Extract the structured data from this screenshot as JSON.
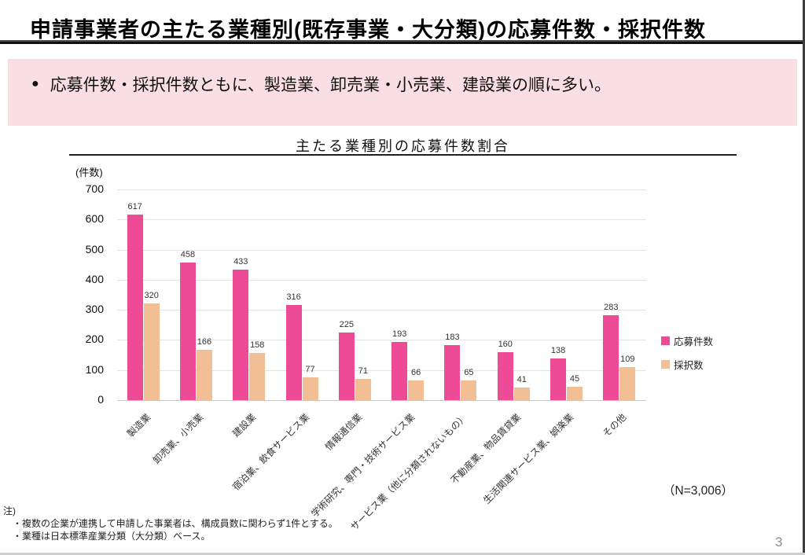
{
  "page": {
    "title": "申請事業者の主たる業種別(既存事業・大分類)の応募件数・採択件数",
    "page_number": "3"
  },
  "summary": {
    "bullet": "●",
    "text": "応募件数・採択件数ともに、製造業、卸売業・小売業、建設業の順に多い。"
  },
  "chart": {
    "title": "主たる業種別の応募件数割合",
    "unit_label": "(件数)",
    "n_label": "（N=3,006）"
  },
  "chart_data": {
    "type": "bar",
    "title": "主たる業種別の応募件数割合",
    "categories": [
      "製造業",
      "卸売業、小売業",
      "建設業",
      "宿泊業、飲食サービス業",
      "情報通信業",
      "学術研究、専門・技術サービス業",
      "サービス業（他に分類されないもの）",
      "不動産業、物品賃貸業",
      "生活関連サービス業、娯楽業",
      "その他"
    ],
    "series": [
      {
        "name": "応募件数",
        "color": "#EE4B97",
        "values": [
          617,
          458,
          433,
          316,
          225,
          193,
          183,
          160,
          138,
          283
        ]
      },
      {
        "name": "採択数",
        "color": "#F2BE93",
        "values": [
          320,
          166,
          158,
          77,
          71,
          66,
          65,
          41,
          45,
          109
        ]
      }
    ],
    "ylabel": "(件数)",
    "ylim": [
      0,
      700
    ],
    "ytick_interval": 100,
    "yticks": [
      0,
      100,
      200,
      300,
      400,
      500,
      600,
      700
    ],
    "grid": true,
    "legend_position": "right",
    "annotation": "（N=3,006）"
  },
  "notes": {
    "heading": "注)",
    "items": [
      "・複数の企業が連携して申請した事業者は、構成員数に関わらず1件とする。",
      "・業種は日本標準産業分類（大分類）ベース。"
    ]
  },
  "colors": {
    "accent_pink": "#EE4B97",
    "accent_orange": "#F2BE93",
    "banner_bg": "#F9DEE3"
  }
}
